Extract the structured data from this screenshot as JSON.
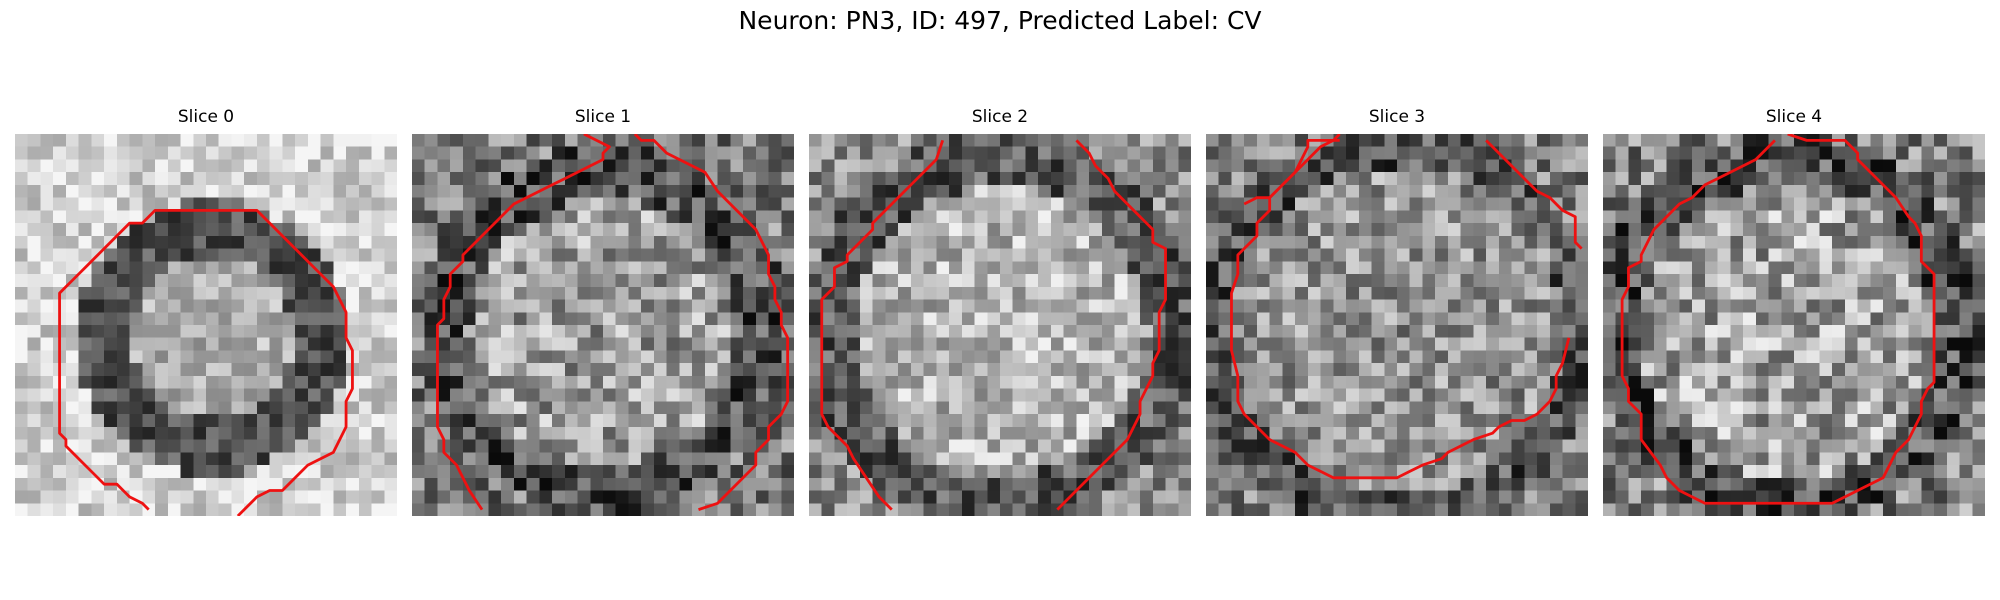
{
  "figure": {
    "title": "Neuron: PN3, ID: 497, Predicted Label: CV"
  },
  "panels": [
    {
      "title": "Slice 0",
      "image": "em-slice-0"
    },
    {
      "title": "Slice 1",
      "image": "em-slice-1"
    },
    {
      "title": "Slice 2",
      "image": "em-slice-2"
    },
    {
      "title": "Slice 3",
      "image": "em-slice-3"
    },
    {
      "title": "Slice 4",
      "image": "em-slice-4"
    }
  ],
  "colors": {
    "contour": "#ee1111",
    "background": "#ffffff"
  }
}
